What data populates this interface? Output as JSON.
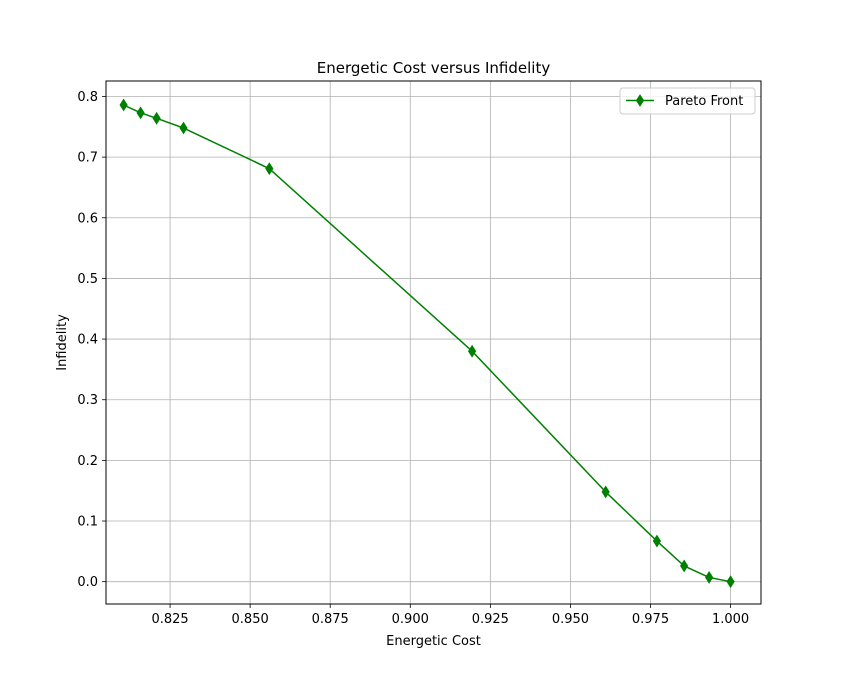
{
  "chart_data": {
    "type": "line",
    "title": "Energetic Cost versus Infidelity",
    "xlabel": "Energetic Cost",
    "ylabel": "Infidelity",
    "xlim": [
      0.805,
      1.0095
    ],
    "ylim": [
      -0.0368,
      0.8255
    ],
    "xticks": [
      0.825,
      0.85,
      0.875,
      0.9,
      0.925,
      0.95,
      0.975,
      1.0
    ],
    "xtick_labels": [
      "0.825",
      "0.850",
      "0.875",
      "0.900",
      "0.925",
      "0.950",
      "0.975",
      "1.000"
    ],
    "yticks": [
      0.0,
      0.1,
      0.2,
      0.3,
      0.4,
      0.5,
      0.6,
      0.7,
      0.8
    ],
    "ytick_labels": [
      "0.0",
      "0.1",
      "0.2",
      "0.3",
      "0.4",
      "0.5",
      "0.6",
      "0.7",
      "0.8"
    ],
    "grid": true,
    "legend_position": "top-right",
    "series": [
      {
        "name": "Pareto Front",
        "color": "#008000",
        "marker": "thin-diamond",
        "x": [
          0.8105,
          0.8158,
          0.8208,
          0.8292,
          0.856,
          0.9193,
          0.961,
          0.977,
          0.9855,
          0.9933,
          1.0
        ],
        "y": [
          0.786,
          0.773,
          0.764,
          0.748,
          0.681,
          0.38,
          0.148,
          0.067,
          0.026,
          0.007,
          0.0
        ]
      }
    ]
  }
}
